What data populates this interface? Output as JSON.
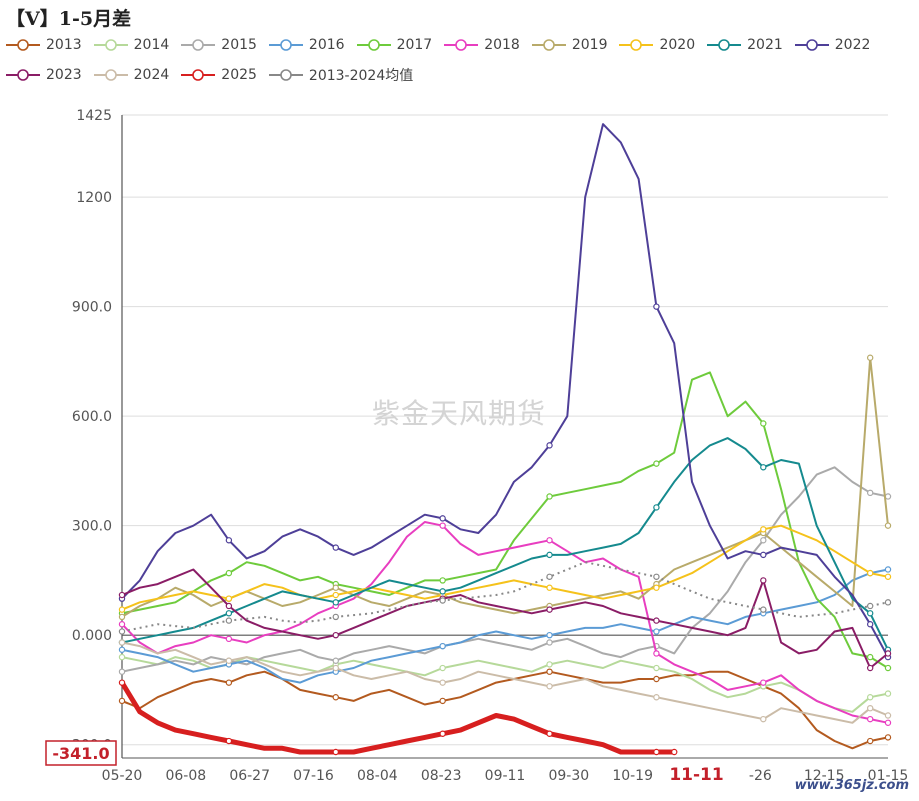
{
  "title": "【V】1-5月差",
  "watermark": "紫金天风期货",
  "site_mark": "www.365jz.com",
  "chart_data": {
    "type": "line",
    "ylim": [
      -320,
      1425
    ],
    "y_ticks": [
      "1425",
      "1200",
      "900.0",
      "600.0",
      "300.0",
      "0.000",
      "-300.0"
    ],
    "x_ticks": [
      "05-20",
      "06-08",
      "06-27",
      "07-16",
      "08-04",
      "08-23",
      "09-11",
      "09-30",
      "10-19",
      "11-11",
      "-26",
      "12-15",
      "01-15"
    ],
    "current_date": "11-11",
    "current_value_label": "-341.0",
    "grid": true,
    "legend_position": "top",
    "series": [
      {
        "name": "2013",
        "color": "#b35a1f",
        "values": [
          -180,
          -200,
          -170,
          -150,
          -130,
          -120,
          -130,
          -110,
          -100,
          -120,
          -150,
          -160,
          -170,
          -180,
          -160,
          -150,
          -170,
          -190,
          -180,
          -170,
          -150,
          -130,
          -120,
          -110,
          -100,
          -110,
          -120,
          -130,
          -130,
          -120,
          -120,
          -110,
          -110,
          -100,
          -100,
          -120,
          -140,
          -160,
          -200,
          -260,
          -290,
          -310,
          -290,
          -280
        ]
      },
      {
        "name": "2014",
        "color": "#b6d99a",
        "values": [
          -60,
          -70,
          -80,
          -60,
          -70,
          -90,
          -80,
          -60,
          -70,
          -80,
          -90,
          -100,
          -80,
          -70,
          -80,
          -90,
          -100,
          -110,
          -90,
          -80,
          -70,
          -80,
          -90,
          -100,
          -80,
          -70,
          -80,
          -90,
          -70,
          -80,
          -90,
          -100,
          -120,
          -150,
          -170,
          -160,
          -140,
          -130,
          -150,
          -180,
          -200,
          -210,
          -170,
          -160
        ]
      },
      {
        "name": "2015",
        "color": "#aaaaaa",
        "values": [
          -100,
          -90,
          -80,
          -70,
          -80,
          -60,
          -70,
          -80,
          -60,
          -50,
          -40,
          -60,
          -70,
          -50,
          -40,
          -30,
          -40,
          -50,
          -30,
          -20,
          -10,
          -20,
          -30,
          -40,
          -20,
          -10,
          -30,
          -50,
          -60,
          -40,
          -30,
          -50,
          20,
          60,
          120,
          200,
          260,
          330,
          380,
          440,
          460,
          420,
          390,
          380
        ]
      },
      {
        "name": "2016",
        "color": "#5b9bd5",
        "values": [
          -40,
          -50,
          -60,
          -80,
          -100,
          -90,
          -80,
          -70,
          -90,
          -120,
          -130,
          -110,
          -100,
          -90,
          -70,
          -60,
          -50,
          -40,
          -30,
          -20,
          0,
          10,
          0,
          -10,
          0,
          10,
          20,
          20,
          30,
          20,
          10,
          30,
          50,
          40,
          30,
          50,
          60,
          70,
          80,
          90,
          110,
          150,
          170,
          180
        ]
      },
      {
        "name": "2017",
        "color": "#6ecb3c",
        "values": [
          60,
          70,
          80,
          90,
          120,
          150,
          170,
          200,
          190,
          170,
          150,
          160,
          140,
          130,
          120,
          110,
          130,
          150,
          150,
          160,
          170,
          180,
          260,
          320,
          380,
          390,
          400,
          410,
          420,
          450,
          470,
          500,
          700,
          720,
          600,
          640,
          580,
          400,
          200,
          100,
          50,
          -50,
          -60,
          -90
        ]
      },
      {
        "name": "2018",
        "color": "#e83ec0",
        "values": [
          30,
          -20,
          -50,
          -30,
          -20,
          0,
          -10,
          -20,
          0,
          10,
          30,
          60,
          80,
          100,
          140,
          200,
          270,
          310,
          300,
          250,
          220,
          230,
          240,
          250,
          260,
          230,
          200,
          210,
          180,
          160,
          -50,
          -80,
          -100,
          -120,
          -150,
          -140,
          -130,
          -110,
          -150,
          -180,
          -200,
          -220,
          -230,
          -240
        ]
      },
      {
        "name": "2019",
        "color": "#b8aa6a",
        "values": [
          50,
          80,
          100,
          130,
          110,
          80,
          100,
          120,
          100,
          80,
          90,
          110,
          130,
          110,
          90,
          80,
          100,
          120,
          110,
          90,
          80,
          70,
          60,
          70,
          80,
          90,
          100,
          110,
          120,
          100,
          140,
          180,
          200,
          220,
          240,
          260,
          280,
          240,
          200,
          160,
          120,
          80,
          760,
          300
        ]
      },
      {
        "name": "2020",
        "color": "#f5c21b",
        "values": [
          70,
          90,
          100,
          110,
          120,
          110,
          100,
          120,
          140,
          130,
          110,
          100,
          110,
          120,
          130,
          120,
          110,
          100,
          110,
          120,
          130,
          140,
          150,
          140,
          130,
          120,
          110,
          100,
          110,
          120,
          130,
          150,
          170,
          200,
          230,
          260,
          290,
          300,
          280,
          260,
          230,
          200,
          170,
          160
        ]
      },
      {
        "name": "2021",
        "color": "#158a8e",
        "values": [
          -20,
          -10,
          0,
          10,
          20,
          40,
          60,
          80,
          100,
          120,
          110,
          100,
          90,
          110,
          130,
          150,
          140,
          130,
          120,
          130,
          150,
          170,
          190,
          210,
          220,
          220,
          230,
          240,
          250,
          280,
          350,
          420,
          480,
          520,
          540,
          510,
          460,
          480,
          470,
          300,
          200,
          100,
          60,
          -40
        ]
      },
      {
        "name": "2022",
        "color": "#4e3f98",
        "values": [
          100,
          150,
          230,
          280,
          300,
          330,
          260,
          210,
          230,
          270,
          290,
          270,
          240,
          220,
          240,
          270,
          300,
          330,
          320,
          290,
          280,
          330,
          420,
          460,
          520,
          600,
          1200,
          1400,
          1350,
          1250,
          900,
          800,
          420,
          300,
          210,
          230,
          220,
          240,
          230,
          220,
          160,
          110,
          30,
          -60
        ]
      },
      {
        "name": "2023",
        "color": "#8a1d66",
        "values": [
          110,
          130,
          140,
          160,
          180,
          130,
          80,
          40,
          20,
          10,
          0,
          -10,
          0,
          20,
          40,
          60,
          80,
          90,
          100,
          110,
          90,
          80,
          70,
          60,
          70,
          80,
          90,
          80,
          60,
          50,
          40,
          30,
          20,
          10,
          0,
          20,
          150,
          -20,
          -50,
          -40,
          10,
          20,
          -90,
          -50
        ]
      },
      {
        "name": "2024",
        "color": "#cbbca8",
        "values": [
          -20,
          -30,
          -50,
          -40,
          -60,
          -80,
          -70,
          -60,
          -80,
          -100,
          -110,
          -100,
          -90,
          -110,
          -120,
          -110,
          -100,
          -120,
          -130,
          -120,
          -100,
          -110,
          -120,
          -130,
          -140,
          -130,
          -120,
          -140,
          -150,
          -160,
          -170,
          -180,
          -190,
          -200,
          -210,
          -220,
          -230,
          -200,
          -210,
          -220,
          -230,
          -240,
          -200,
          -220
        ]
      },
      {
        "name": "2025",
        "color": "#d71f1f",
        "values": [
          -130,
          -210,
          -240,
          -260,
          -270,
          -280,
          -290,
          -300,
          -310,
          -310,
          -320,
          -320,
          -330,
          -320,
          -310,
          -300,
          -290,
          -280,
          -270,
          -260,
          -240,
          -220,
          -230,
          -250,
          -270,
          -280,
          -290,
          -300,
          -320,
          -330,
          -340,
          -345
        ]
      },
      {
        "name": "2013-2024均值",
        "color": "#888888",
        "values": [
          10,
          20,
          30,
          25,
          20,
          30,
          40,
          45,
          50,
          40,
          35,
          40,
          50,
          55,
          60,
          70,
          80,
          90,
          95,
          100,
          105,
          110,
          120,
          140,
          160,
          180,
          200,
          190,
          180,
          170,
          160,
          140,
          120,
          100,
          90,
          80,
          70,
          60,
          50,
          55,
          60,
          70,
          80,
          90
        ]
      }
    ]
  }
}
